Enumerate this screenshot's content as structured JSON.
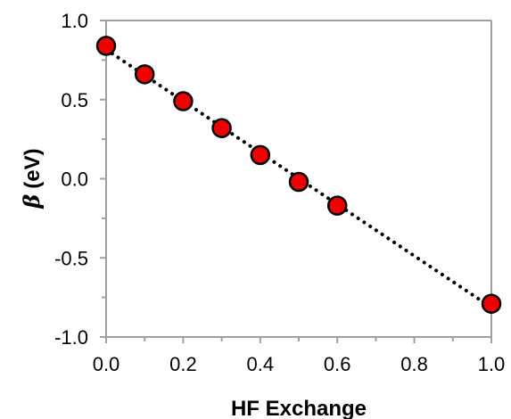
{
  "chart_data": {
    "type": "scatter",
    "title": "",
    "xlabel": "HF Exchange",
    "ylabel_symbol": "β",
    "ylabel_unit": "(eV)",
    "xlim": [
      0.0,
      1.0
    ],
    "ylim": [
      -1.0,
      1.0
    ],
    "x_ticks": [
      "0.0",
      "0.2",
      "0.4",
      "0.6",
      "0.8",
      "1.0"
    ],
    "y_ticks": [
      "-1.0",
      "-0.5",
      "0.0",
      "0.5",
      "1.0"
    ],
    "grid": false,
    "legend": "none",
    "fit_line": "dotted",
    "series": [
      {
        "x": [
          0.0,
          0.1,
          0.2,
          0.3,
          0.4,
          0.5,
          0.6,
          1.0
        ],
        "y": [
          0.84,
          0.66,
          0.49,
          0.32,
          0.15,
          -0.02,
          -0.17,
          -0.79
        ]
      }
    ],
    "colors": {
      "marker_fill": "#ee0000",
      "marker_stroke": "#000000",
      "line": "#000000",
      "axis": "#a0a0a0"
    }
  }
}
